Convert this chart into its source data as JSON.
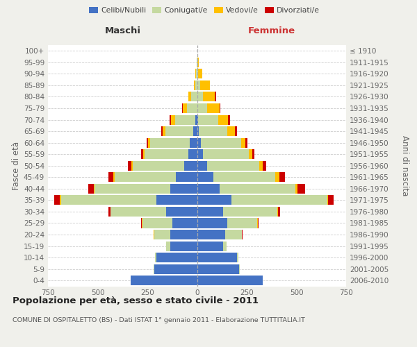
{
  "age_groups": [
    "0-4",
    "5-9",
    "10-14",
    "15-19",
    "20-24",
    "25-29",
    "30-34",
    "35-39",
    "40-44",
    "45-49",
    "50-54",
    "55-59",
    "60-64",
    "65-69",
    "70-74",
    "75-79",
    "80-84",
    "85-89",
    "90-94",
    "95-99",
    "100+"
  ],
  "birth_years": [
    "2006-2010",
    "2001-2005",
    "1996-2000",
    "1991-1995",
    "1986-1990",
    "1981-1985",
    "1976-1980",
    "1971-1975",
    "1966-1970",
    "1961-1965",
    "1956-1960",
    "1951-1955",
    "1946-1950",
    "1941-1945",
    "1936-1940",
    "1931-1935",
    "1926-1930",
    "1921-1925",
    "1916-1920",
    "1911-1915",
    "≤ 1910"
  ],
  "male_celibe": [
    335,
    215,
    205,
    135,
    135,
    125,
    155,
    205,
    135,
    105,
    65,
    45,
    35,
    18,
    10,
    0,
    0,
    0,
    0,
    0,
    0
  ],
  "male_coniugato": [
    0,
    2,
    5,
    20,
    80,
    150,
    280,
    480,
    380,
    310,
    260,
    220,
    200,
    140,
    100,
    50,
    30,
    10,
    5,
    2,
    0
  ],
  "male_vedovo": [
    0,
    0,
    0,
    0,
    2,
    2,
    2,
    5,
    5,
    5,
    5,
    5,
    10,
    15,
    20,
    20,
    15,
    5,
    2,
    0,
    0
  ],
  "male_divorziato": [
    0,
    0,
    0,
    0,
    2,
    4,
    8,
    28,
    28,
    25,
    18,
    12,
    8,
    8,
    8,
    5,
    0,
    0,
    0,
    0,
    0
  ],
  "female_nubile": [
    332,
    212,
    202,
    132,
    142,
    152,
    132,
    172,
    112,
    82,
    52,
    30,
    20,
    10,
    5,
    0,
    0,
    0,
    0,
    0,
    0
  ],
  "female_coniugata": [
    0,
    2,
    5,
    15,
    82,
    152,
    272,
    482,
    382,
    312,
    262,
    232,
    202,
    142,
    102,
    52,
    30,
    15,
    5,
    2,
    0
  ],
  "female_vedova": [
    0,
    0,
    0,
    0,
    2,
    2,
    5,
    5,
    10,
    20,
    15,
    15,
    20,
    40,
    50,
    60,
    60,
    50,
    20,
    5,
    0
  ],
  "female_divorziata": [
    0,
    0,
    0,
    0,
    2,
    4,
    8,
    28,
    38,
    28,
    18,
    12,
    12,
    8,
    8,
    5,
    5,
    0,
    0,
    0,
    0
  ],
  "color_celibe": "#4472c4",
  "color_coniugato": "#c5d9a0",
  "color_vedovo": "#ffc000",
  "color_divorziato": "#cc0000",
  "xlim": 750,
  "title": "Popolazione per età, sesso e stato civile - 2011",
  "subtitle": "COMUNE DI OSPITALETTO (BS) - Dati ISTAT 1° gennaio 2011 - Elaborazione TUTTITALIA.IT",
  "ylabel_left": "Fasce di età",
  "ylabel_right": "Anni di nascita",
  "xlabel_left": "Maschi",
  "xlabel_right": "Femmine",
  "bg_color": "#f0f0eb",
  "plot_bg_color": "#ffffff"
}
